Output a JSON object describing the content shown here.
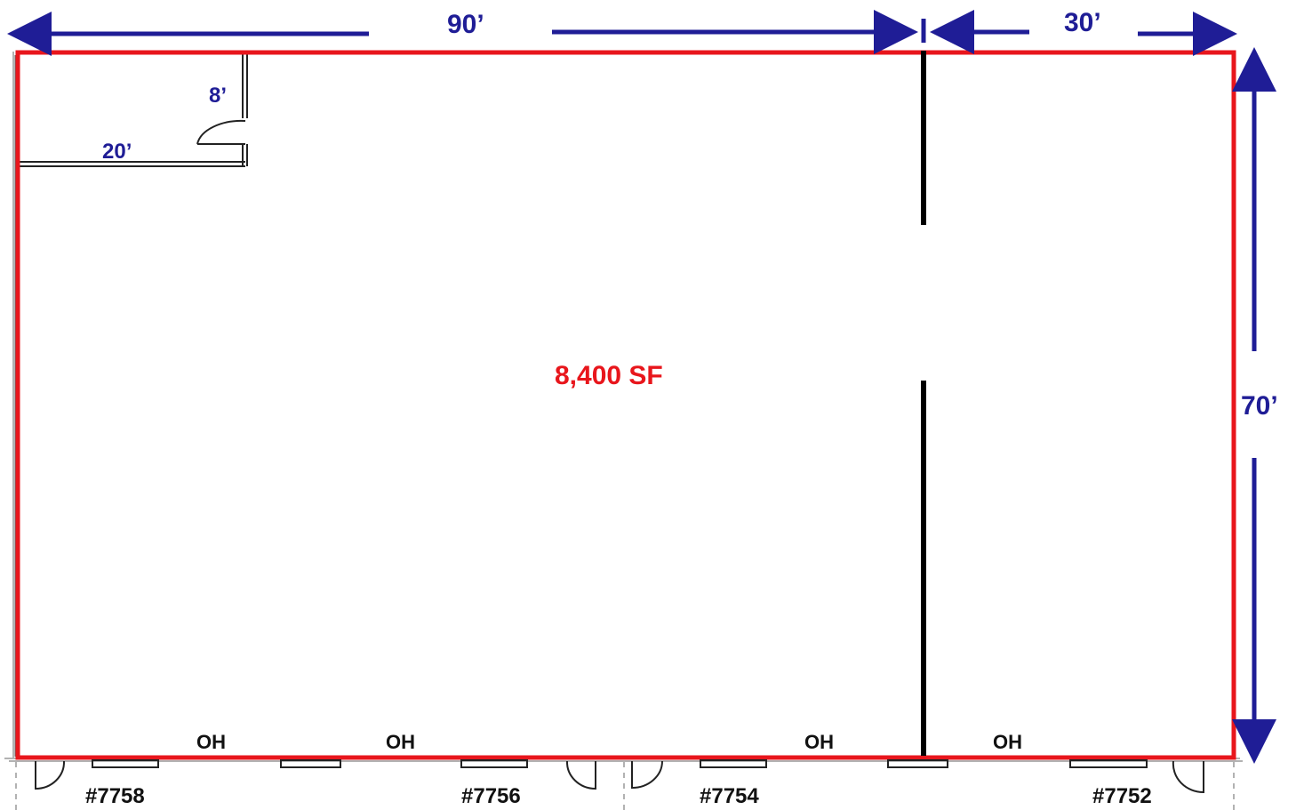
{
  "colors": {
    "outline": "#e8161c",
    "dimension": "#1f1d96",
    "wall": "#000000",
    "label": "#111111"
  },
  "dimensions": {
    "width_left": "90’",
    "width_right": "30’",
    "depth": "70’",
    "office_width": "20’",
    "office_depth": "8’"
  },
  "area_label": "8,400 SF",
  "overhead_doors": [
    "OH",
    "OH",
    "OH",
    "OH"
  ],
  "units": [
    "#7758",
    "#7756",
    "#7754",
    "#7752"
  ],
  "icons": {
    "dimension_arrow": "arrow-icon",
    "door_swing": "door-swing-icon",
    "overhead_door": "overhead-door-icon"
  }
}
